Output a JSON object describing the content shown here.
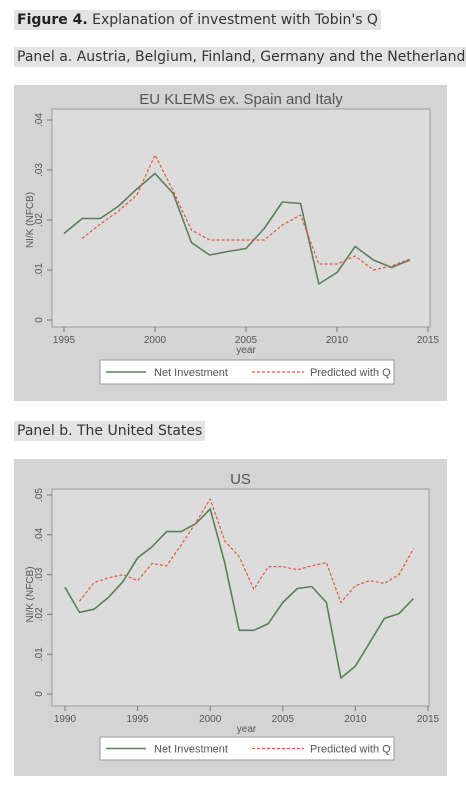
{
  "figure": {
    "label": "Figure 4.",
    "title": "Explanation of investment with Tobin's Q",
    "panel_a_caption": "Panel a. Austria, Belgium, Finland, Germany and the Netherlands",
    "panel_b_caption": "Panel b. The United States"
  },
  "colors": {
    "net_investment": "#5a7f5a",
    "predicted": "#e0593a",
    "panel_bg": "#d4d4d4",
    "plot_bg": "#dcdcdc"
  },
  "chart_data": [
    {
      "type": "line",
      "title": "EU KLEMS ex. Spain and Italy",
      "xlabel": "year",
      "ylabel": "NI/K (NFCB)",
      "xlim": [
        1995,
        2015
      ],
      "ylim": [
        0,
        0.04
      ],
      "xticks": [
        1995,
        2000,
        2005,
        2010,
        2015
      ],
      "xtick_labels": [
        "1995",
        "2000",
        "2005",
        "2010",
        "2015"
      ],
      "yticks": [
        0,
        0.01,
        0.02,
        0.03,
        0.04
      ],
      "ytick_labels": [
        "0",
        ".01",
        ".02",
        ".03",
        ".04"
      ],
      "legend_position": "bottom",
      "series": [
        {
          "name": "Net Investment",
          "style": "solid",
          "x": [
            1995,
            1996,
            1997,
            1998,
            1999,
            2000,
            2001,
            2002,
            2003,
            2004,
            2005,
            2006,
            2007,
            2008,
            2009,
            2010,
            2011,
            2012,
            2013,
            2014
          ],
          "y": [
            0.0173,
            0.0203,
            0.0203,
            0.0228,
            0.0262,
            0.0293,
            0.0253,
            0.0155,
            0.013,
            0.0137,
            0.0143,
            0.0183,
            0.0236,
            0.0233,
            0.0072,
            0.0095,
            0.0147,
            0.012,
            0.0105,
            0.012
          ]
        },
        {
          "name": "Predicted with Q",
          "style": "dashed",
          "x": [
            1996,
            1997,
            1998,
            1999,
            2000,
            2001,
            2002,
            2003,
            2004,
            2005,
            2006,
            2007,
            2008,
            2009,
            2010,
            2011,
            2012,
            2013,
            2014
          ],
          "y": [
            0.0163,
            0.0192,
            0.0218,
            0.025,
            0.033,
            0.0258,
            0.018,
            0.016,
            0.016,
            0.016,
            0.016,
            0.019,
            0.021,
            0.0112,
            0.0112,
            0.0128,
            0.01,
            0.0108,
            0.0122
          ]
        }
      ]
    },
    {
      "type": "line",
      "title": "US",
      "xlabel": "year",
      "ylabel": "NI/K (NFCB)",
      "xlim": [
        1990,
        2015
      ],
      "ylim": [
        0,
        0.05
      ],
      "xticks": [
        1990,
        1995,
        2000,
        2005,
        2010,
        2015
      ],
      "xtick_labels": [
        "1990",
        "1995",
        "2000",
        "2005",
        "2010",
        "2015"
      ],
      "yticks": [
        0,
        0.01,
        0.02,
        0.03,
        0.04,
        0.05
      ],
      "ytick_labels": [
        "0",
        ".01",
        ".02",
        ".03",
        ".04",
        ".05"
      ],
      "legend_position": "bottom",
      "series": [
        {
          "name": "Net Investment",
          "style": "solid",
          "x": [
            1990,
            1991,
            1992,
            1993,
            1994,
            1995,
            1996,
            1997,
            1998,
            1999,
            2000,
            2001,
            2002,
            2003,
            2004,
            2005,
            2006,
            2007,
            2008,
            2009,
            2010,
            2011,
            2012,
            2013,
            2014
          ],
          "y": [
            0.0268,
            0.0205,
            0.0213,
            0.0243,
            0.0283,
            0.0342,
            0.037,
            0.0408,
            0.0408,
            0.0428,
            0.0465,
            0.033,
            0.016,
            0.016,
            0.0177,
            0.023,
            0.0265,
            0.027,
            0.023,
            0.004,
            0.007,
            0.013,
            0.019,
            0.0202,
            0.024
          ]
        },
        {
          "name": "Predicted with Q",
          "style": "dashed",
          "x": [
            1991,
            1992,
            1993,
            1994,
            1995,
            1996,
            1997,
            1998,
            1999,
            2000,
            2001,
            2002,
            2003,
            2004,
            2005,
            2006,
            2007,
            2008,
            2009,
            2010,
            2011,
            2012,
            2013,
            2014
          ],
          "y": [
            0.0233,
            0.028,
            0.0292,
            0.03,
            0.0285,
            0.0328,
            0.0322,
            0.0375,
            0.043,
            0.049,
            0.0385,
            0.0345,
            0.0263,
            0.032,
            0.032,
            0.0312,
            0.0322,
            0.033,
            0.023,
            0.0272,
            0.0285,
            0.0278,
            0.03,
            0.0365
          ]
        }
      ]
    }
  ]
}
